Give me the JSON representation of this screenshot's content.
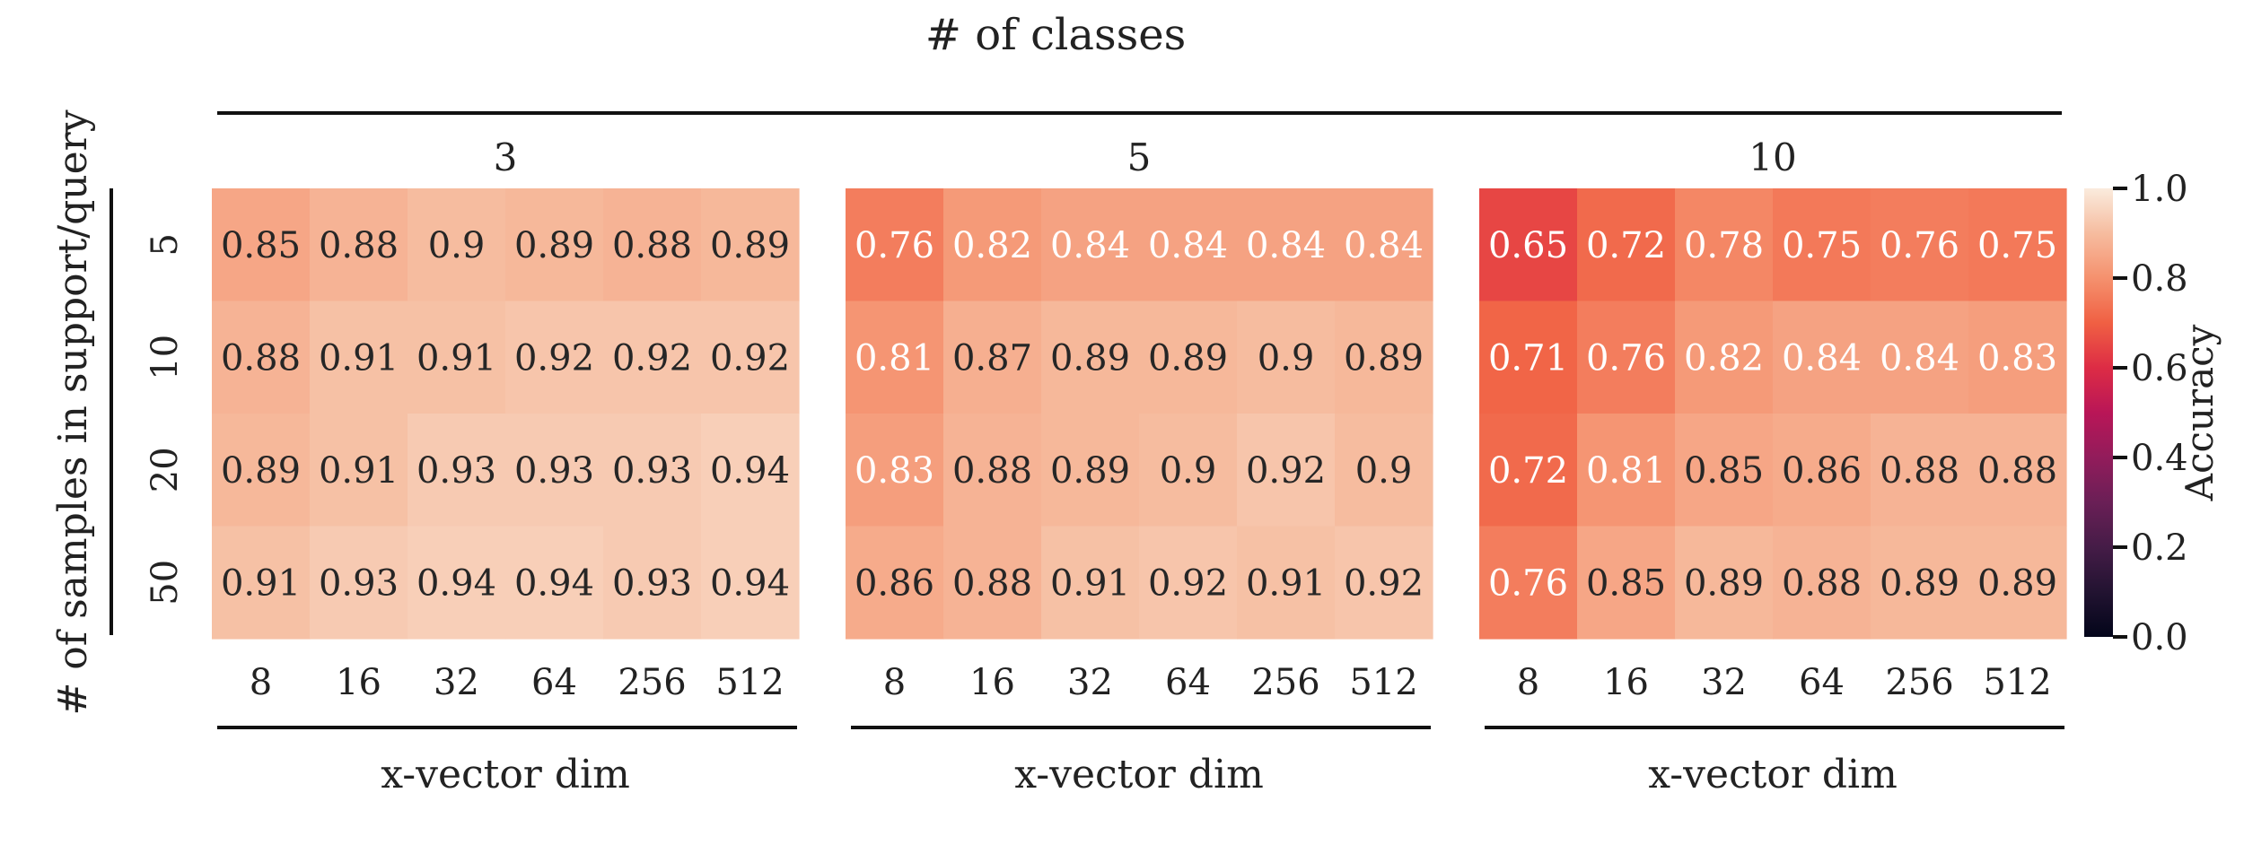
{
  "chart_data": {
    "type": "heatmap",
    "title": "# of classes",
    "ylabel": "# of samples in support/query",
    "row_labels": [
      "5",
      "10",
      "20",
      "50"
    ],
    "x_categories": [
      "8",
      "16",
      "32",
      "64",
      "256",
      "512"
    ],
    "panels": [
      {
        "title": "3",
        "xlabel": "x-vector dim",
        "values": [
          [
            0.85,
            0.88,
            0.9,
            0.89,
            0.88,
            0.89
          ],
          [
            0.88,
            0.91,
            0.91,
            0.92,
            0.92,
            0.92
          ],
          [
            0.89,
            0.91,
            0.93,
            0.93,
            0.93,
            0.94
          ],
          [
            0.91,
            0.93,
            0.94,
            0.94,
            0.93,
            0.94
          ]
        ]
      },
      {
        "title": "5",
        "xlabel": "x-vector dim",
        "values": [
          [
            0.76,
            0.82,
            0.84,
            0.84,
            0.84,
            0.84
          ],
          [
            0.81,
            0.87,
            0.89,
            0.89,
            0.9,
            0.89
          ],
          [
            0.83,
            0.88,
            0.89,
            0.9,
            0.92,
            0.9
          ],
          [
            0.86,
            0.88,
            0.91,
            0.92,
            0.91,
            0.92
          ]
        ]
      },
      {
        "title": "10",
        "xlabel": "x-vector dim",
        "values": [
          [
            0.65,
            0.72,
            0.78,
            0.75,
            0.76,
            0.75
          ],
          [
            0.71,
            0.76,
            0.82,
            0.84,
            0.84,
            0.83
          ],
          [
            0.72,
            0.81,
            0.85,
            0.86,
            0.88,
            0.88
          ],
          [
            0.76,
            0.85,
            0.89,
            0.88,
            0.89,
            0.89
          ]
        ]
      }
    ],
    "colorbar": {
      "label": "Accuracy",
      "range": [
        0.0,
        1.0
      ],
      "ticks": [
        "0.0",
        "0.2",
        "0.4",
        "0.6",
        "0.8",
        "1.0"
      ],
      "colormap": "rocket"
    }
  }
}
